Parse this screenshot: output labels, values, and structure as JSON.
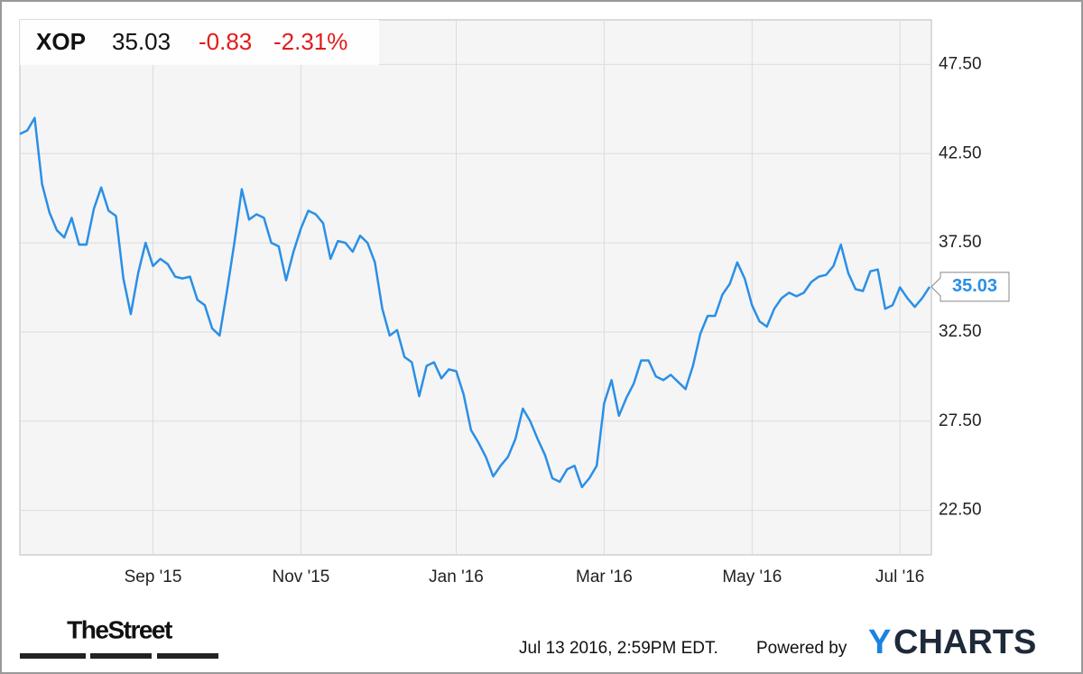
{
  "header": {
    "symbol": "XOP",
    "price": 35.03,
    "change": -0.83,
    "change_pct": "-2.31%"
  },
  "chart_data": {
    "type": "line",
    "color": "#2b8fe6",
    "grid": true,
    "categories": [
      null,
      null,
      null,
      null,
      null,
      null,
      null,
      null,
      null,
      null,
      null,
      null,
      null,
      null,
      null,
      null,
      null,
      null,
      "Sep '15",
      null,
      null,
      null,
      null,
      null,
      null,
      null,
      null,
      null,
      null,
      null,
      null,
      null,
      null,
      null,
      null,
      null,
      null,
      null,
      "Nov '15",
      null,
      null,
      null,
      null,
      null,
      null,
      null,
      null,
      null,
      null,
      null,
      null,
      null,
      null,
      null,
      null,
      null,
      null,
      null,
      null,
      "Jan '16",
      null,
      null,
      null,
      null,
      null,
      null,
      null,
      null,
      null,
      null,
      null,
      null,
      null,
      null,
      null,
      null,
      null,
      null,
      null,
      "Mar '16",
      null,
      null,
      null,
      null,
      null,
      null,
      null,
      null,
      null,
      null,
      null,
      null,
      null,
      null,
      null,
      null,
      null,
      null,
      null,
      "May '16",
      null,
      null,
      null,
      null,
      null,
      null,
      null,
      null,
      null,
      null,
      null,
      null,
      null,
      null,
      null,
      null,
      null,
      null,
      null,
      "Jul '16",
      null,
      null,
      null,
      null
    ],
    "values": [
      43.6,
      43.8,
      44.5,
      40.8,
      39.2,
      38.2,
      37.8,
      38.9,
      37.4,
      37.4,
      39.4,
      40.6,
      39.3,
      39.0,
      35.5,
      33.5,
      35.8,
      37.5,
      36.2,
      36.6,
      36.3,
      35.6,
      35.5,
      35.6,
      34.3,
      34.0,
      32.7,
      32.3,
      34.8,
      37.5,
      40.5,
      38.8,
      39.1,
      38.9,
      37.5,
      37.3,
      35.4,
      37.0,
      38.3,
      39.3,
      39.1,
      38.6,
      36.6,
      37.6,
      37.5,
      37.0,
      37.9,
      37.5,
      36.4,
      33.8,
      32.3,
      32.6,
      31.1,
      30.8,
      28.9,
      30.6,
      30.8,
      29.9,
      30.4,
      30.3,
      29.0,
      27.0,
      26.3,
      25.5,
      24.4,
      25.0,
      25.5,
      26.5,
      28.2,
      27.5,
      26.5,
      25.6,
      24.3,
      24.1,
      24.8,
      25.0,
      23.8,
      24.3,
      25.0,
      28.5,
      29.8,
      27.8,
      28.8,
      29.6,
      30.9,
      30.9,
      30.0,
      29.8,
      30.1,
      29.7,
      29.3,
      30.6,
      32.4,
      33.4,
      33.4,
      34.6,
      35.2,
      36.4,
      35.5,
      34.0,
      33.1,
      32.8,
      33.8,
      34.4,
      34.7,
      34.5,
      34.7,
      35.3,
      35.6,
      35.7,
      36.2,
      37.4,
      35.8,
      34.9,
      34.8,
      35.9,
      36.0,
      33.8,
      34.0,
      35.0,
      34.4,
      33.9,
      34.4,
      35.03
    ],
    "ylim": [
      20,
      50
    ],
    "yticks": [
      {
        "value": 22.5,
        "label": "22.50"
      },
      {
        "value": 27.5,
        "label": "27.50"
      },
      {
        "value": 32.5,
        "label": "32.50"
      },
      {
        "value": 37.5,
        "label": "37.50"
      },
      {
        "value": 42.5,
        "label": "42.50"
      },
      {
        "value": 47.5,
        "label": "47.50"
      }
    ]
  },
  "footer": {
    "publisher": "TheStreet",
    "timestamp": "Jul 13 2016, 2:59PM EDT.",
    "powered": "Powered by",
    "brand_y": "Y",
    "brand_rest": "CHARTS"
  }
}
